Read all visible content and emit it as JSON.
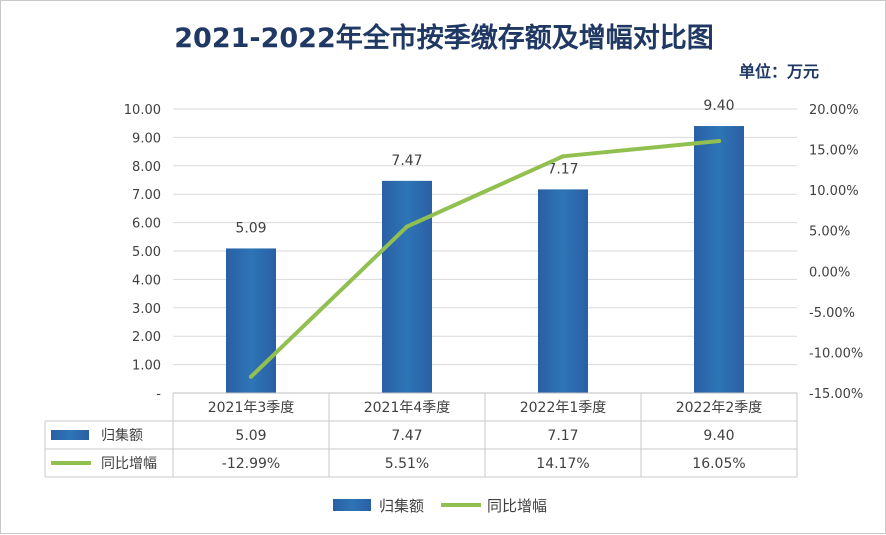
{
  "title": "2021-2022年全市按季缴存额及增幅对比图",
  "unit_label": "单位：万元",
  "chart_data": {
    "type": "bar",
    "categories": [
      "2021年3季度",
      "2021年4季度",
      "2022年1季度",
      "2022年2季度"
    ],
    "series": [
      {
        "name": "归集额",
        "type": "bar",
        "axis": "left",
        "values": [
          5.09,
          7.47,
          7.17,
          9.4
        ],
        "labels": [
          "5.09",
          "7.47",
          "7.17",
          "9.40"
        ],
        "color": "#2e75b6"
      },
      {
        "name": "同比增幅",
        "type": "line",
        "axis": "right",
        "values": [
          -12.99,
          5.51,
          14.17,
          16.05
        ],
        "labels": [
          "-12.99%",
          "5.51%",
          "14.17%",
          "16.05%"
        ],
        "color": "#92c050"
      }
    ],
    "left_axis": {
      "min": 0,
      "max": 10,
      "step": 1,
      "tick_labels": [
        "-",
        "1.00",
        "2.00",
        "3.00",
        "4.00",
        "5.00",
        "6.00",
        "7.00",
        "8.00",
        "9.00",
        "10.00"
      ]
    },
    "right_axis": {
      "min": -15,
      "max": 20,
      "step": 5,
      "tick_labels": [
        "-15.00%",
        "-10.00%",
        "-5.00%",
        "0.00%",
        "5.00%",
        "10.00%",
        "15.00%",
        "20.00%"
      ]
    },
    "grid": true,
    "data_table": true,
    "legend_position": "bottom"
  }
}
